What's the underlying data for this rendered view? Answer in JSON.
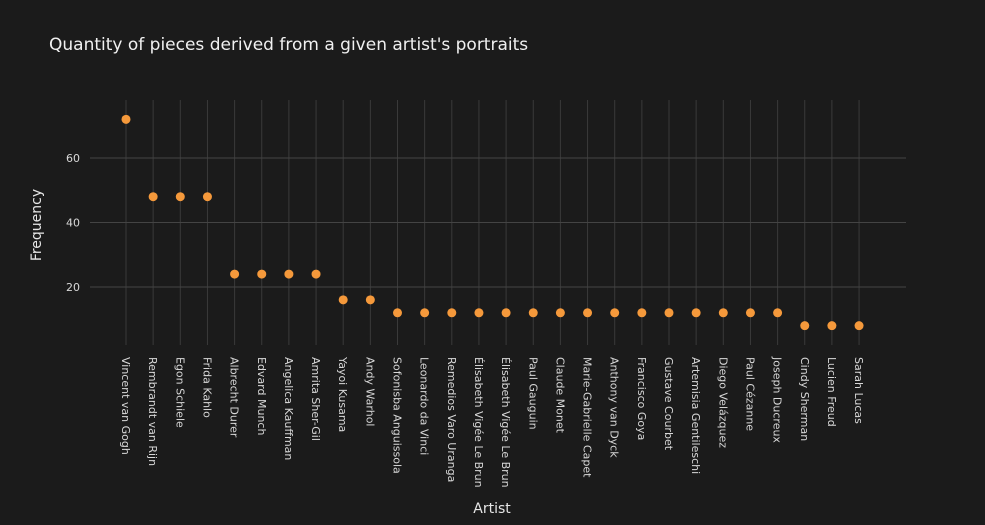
{
  "chart_data": {
    "type": "scatter",
    "title": "Quantity of pieces derived from a given artist's portraits",
    "xlabel": "Artist",
    "ylabel": "Frequency",
    "ylim": [
      2,
      78
    ],
    "yticks": [
      20,
      40,
      60
    ],
    "grid": true,
    "marker_color": "#f5993b",
    "background_color": "#1b1b1b",
    "categories": [
      "Vincent van Gogh",
      "Rembrandt van Rijn",
      "Egon Schiele",
      "Frida Kahlo",
      "Albrecht Durer",
      "Edvard Munch",
      "Angelica Kauffman",
      "Amrita Sher-Gil",
      "Yayoi Kusama",
      "Andy Warhol",
      "Sofonisba Anguissola",
      "Leonardo da Vinci",
      "Remedios Varo Uranga",
      "Élisabeth Vigée Le Brun",
      "Élisabeth Vigée Le Brun",
      "Paul Gauguin",
      "Claude Monet",
      "Marie-Gabrielle Capet",
      "Anthony van Dyck",
      "Francisco Goya",
      "Gustave Courbet",
      "Artemisia Gentileschi",
      "Diego Velázquez",
      "Paul Cézanne",
      "Joseph Ducreux",
      "Cindy Sherman",
      "Lucien Freud",
      "Sarah Lucas"
    ],
    "values": [
      72,
      48,
      48,
      48,
      24,
      24,
      24,
      24,
      16,
      16,
      12,
      12,
      12,
      12,
      12,
      12,
      12,
      12,
      12,
      12,
      12,
      12,
      12,
      12,
      12,
      8,
      8,
      8
    ]
  }
}
